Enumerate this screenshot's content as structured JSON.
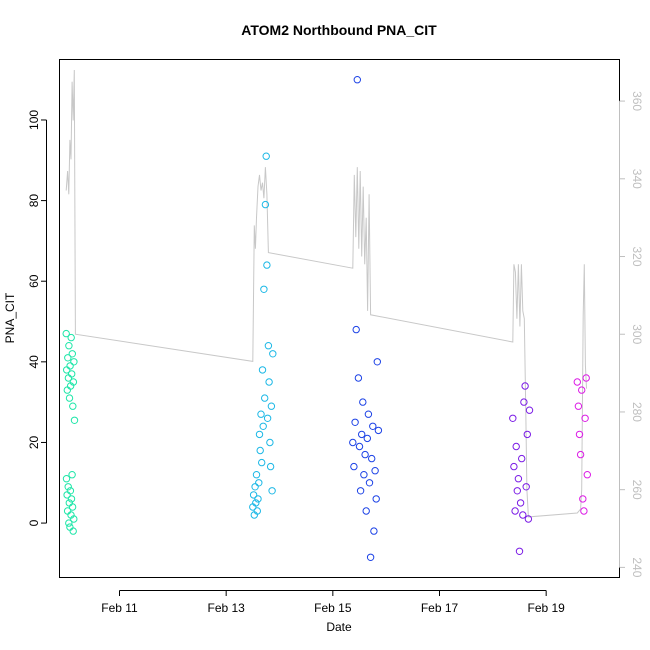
{
  "chart_data": {
    "type": "scatter",
    "title": "ATOM2 Northbound PNA_CIT",
    "xlabel": "Date",
    "ylabel": "PNA_CIT",
    "x_type": "date",
    "xlim": [
      "2017-02-09T21:00",
      "2017-02-20T09:00"
    ],
    "x_ticks": [
      {
        "label": "Feb 11",
        "value": "2017-02-11T00:00"
      },
      {
        "label": "Feb 13",
        "value": "2017-02-13T00:00"
      },
      {
        "label": "Feb 15",
        "value": "2017-02-15T00:00"
      },
      {
        "label": "Feb 17",
        "value": "2017-02-17T00:00"
      },
      {
        "label": "Feb 19",
        "value": "2017-02-19T00:00"
      }
    ],
    "ylim": [
      -13.5,
      115
    ],
    "y_ticks": [
      0,
      20,
      40,
      60,
      80,
      100
    ],
    "y2lim": [
      237.4,
      370.7
    ],
    "y2_ticks": [
      240,
      260,
      280,
      300,
      320,
      340,
      360
    ],
    "grid": false,
    "legend": "none",
    "point_style": "open circle, colored along a gradient by time",
    "line_series": {
      "color": "#c8c8c8",
      "axis": "right",
      "points": [
        [
          "2017-02-10T00:00",
          337
        ],
        [
          "2017-02-10T00:40",
          342
        ],
        [
          "2017-02-10T01:10",
          336
        ],
        [
          "2017-02-10T01:40",
          350
        ],
        [
          "2017-02-10T02:10",
          345
        ],
        [
          "2017-02-10T02:40",
          365
        ],
        [
          "2017-02-10T03:10",
          355
        ],
        [
          "2017-02-10T03:40",
          368
        ],
        [
          "2017-02-10T04:10",
          300
        ],
        [
          "2017-02-13T12:00",
          293
        ],
        [
          "2017-02-13T12:40",
          328
        ],
        [
          "2017-02-13T13:10",
          322
        ],
        [
          "2017-02-13T13:40",
          330
        ],
        [
          "2017-02-13T14:20",
          338
        ],
        [
          "2017-02-13T15:00",
          341
        ],
        [
          "2017-02-13T15:40",
          337
        ],
        [
          "2017-02-13T16:20",
          339
        ],
        [
          "2017-02-13T17:00",
          335
        ],
        [
          "2017-02-13T17:40",
          343
        ],
        [
          "2017-02-13T18:20",
          336
        ],
        [
          "2017-02-13T19:00",
          321
        ],
        [
          "2017-02-15T09:00",
          317
        ],
        [
          "2017-02-15T09:40",
          341
        ],
        [
          "2017-02-15T10:20",
          325
        ],
        [
          "2017-02-15T11:00",
          343
        ],
        [
          "2017-02-15T11:40",
          322
        ],
        [
          "2017-02-15T12:20",
          342
        ],
        [
          "2017-02-15T13:00",
          320
        ],
        [
          "2017-02-15T13:40",
          338
        ],
        [
          "2017-02-15T14:20",
          318
        ],
        [
          "2017-02-15T15:00",
          330
        ],
        [
          "2017-02-15T15:40",
          306
        ],
        [
          "2017-02-15T16:20",
          336
        ],
        [
          "2017-02-15T17:00",
          305
        ],
        [
          "2017-02-18T09:00",
          298
        ],
        [
          "2017-02-18T09:30",
          318
        ],
        [
          "2017-02-18T10:10",
          316
        ],
        [
          "2017-02-18T10:50",
          304
        ],
        [
          "2017-02-18T11:30",
          318
        ],
        [
          "2017-02-18T12:10",
          302
        ],
        [
          "2017-02-18T12:50",
          318
        ],
        [
          "2017-02-18T13:30",
          306
        ],
        [
          "2017-02-18T14:10",
          304
        ],
        [
          "2017-02-18T14:50",
          280
        ],
        [
          "2017-02-18T15:20",
          260
        ],
        [
          "2017-02-18T16:00",
          253
        ],
        [
          "2017-02-19T14:00",
          254
        ],
        [
          "2017-02-19T15:30",
          255
        ],
        [
          "2017-02-19T16:00",
          260
        ],
        [
          "2017-02-19T16:40",
          305
        ],
        [
          "2017-02-19T17:10",
          318
        ],
        [
          "2017-02-19T17:40",
          292
        ],
        [
          "2017-02-19T18:10",
          286
        ]
      ]
    },
    "series": [
      {
        "color": "#1de6a8",
        "points": [
          [
            "2017-02-10T00:00",
            47
          ],
          [
            "2017-02-10T00:15",
            38
          ],
          [
            "2017-02-10T00:30",
            33
          ],
          [
            "2017-02-10T00:45",
            41
          ],
          [
            "2017-02-10T01:00",
            36
          ],
          [
            "2017-02-10T01:15",
            44
          ],
          [
            "2017-02-10T01:30",
            31
          ],
          [
            "2017-02-10T01:45",
            39
          ],
          [
            "2017-02-10T02:00",
            34
          ],
          [
            "2017-02-10T02:15",
            46
          ],
          [
            "2017-02-10T02:30",
            37
          ],
          [
            "2017-02-10T02:45",
            42
          ],
          [
            "2017-02-10T03:00",
            29
          ],
          [
            "2017-02-10T03:15",
            35
          ],
          [
            "2017-02-10T03:30",
            40
          ],
          [
            "2017-02-10T03:45",
            25.5
          ],
          [
            "2017-02-10T00:10",
            11
          ],
          [
            "2017-02-10T00:25",
            7
          ],
          [
            "2017-02-10T00:40",
            3
          ],
          [
            "2017-02-10T00:55",
            9
          ],
          [
            "2017-02-10T01:10",
            0
          ],
          [
            "2017-02-10T01:25",
            5
          ],
          [
            "2017-02-10T01:40",
            -1
          ],
          [
            "2017-02-10T01:55",
            8
          ],
          [
            "2017-02-10T02:10",
            2
          ],
          [
            "2017-02-10T02:25",
            6
          ],
          [
            "2017-02-10T02:40",
            12
          ],
          [
            "2017-02-10T02:55",
            4
          ],
          [
            "2017-02-10T03:10",
            -2
          ],
          [
            "2017-02-10T03:25",
            1
          ]
        ]
      },
      {
        "color": "#1cb8e6",
        "points": [
          [
            "2017-02-13T12:00",
            4
          ],
          [
            "2017-02-13T12:20",
            7
          ],
          [
            "2017-02-13T12:40",
            2
          ],
          [
            "2017-02-13T13:00",
            9
          ],
          [
            "2017-02-13T13:20",
            5
          ],
          [
            "2017-02-13T13:40",
            12
          ],
          [
            "2017-02-13T14:00",
            3
          ],
          [
            "2017-02-13T14:20",
            6
          ],
          [
            "2017-02-13T14:40",
            10
          ],
          [
            "2017-02-13T15:00",
            22
          ],
          [
            "2017-02-13T15:20",
            18
          ],
          [
            "2017-02-13T15:40",
            27
          ],
          [
            "2017-02-13T16:00",
            15
          ],
          [
            "2017-02-13T16:20",
            38
          ],
          [
            "2017-02-13T16:40",
            24
          ],
          [
            "2017-02-13T17:00",
            58
          ],
          [
            "2017-02-13T17:20",
            31
          ],
          [
            "2017-02-13T17:40",
            79
          ],
          [
            "2017-02-13T18:00",
            91
          ],
          [
            "2017-02-13T18:20",
            64
          ],
          [
            "2017-02-13T18:40",
            26
          ],
          [
            "2017-02-13T19:00",
            44
          ],
          [
            "2017-02-13T19:20",
            35
          ],
          [
            "2017-02-13T19:40",
            20
          ],
          [
            "2017-02-13T20:00",
            14
          ],
          [
            "2017-02-13T20:20",
            29
          ],
          [
            "2017-02-13T20:40",
            8
          ],
          [
            "2017-02-13T21:00",
            42
          ]
        ]
      },
      {
        "color": "#1c42e6",
        "points": [
          [
            "2017-02-15T09:00",
            20
          ],
          [
            "2017-02-15T09:30",
            14
          ],
          [
            "2017-02-15T10:00",
            25
          ],
          [
            "2017-02-15T10:30",
            48
          ],
          [
            "2017-02-15T11:00",
            110
          ],
          [
            "2017-02-15T11:30",
            36
          ],
          [
            "2017-02-15T12:00",
            19
          ],
          [
            "2017-02-15T12:30",
            8
          ],
          [
            "2017-02-15T13:00",
            22
          ],
          [
            "2017-02-15T13:30",
            30
          ],
          [
            "2017-02-15T14:00",
            12
          ],
          [
            "2017-02-15T14:30",
            17
          ],
          [
            "2017-02-15T15:00",
            3
          ],
          [
            "2017-02-15T15:30",
            21
          ],
          [
            "2017-02-15T16:00",
            27
          ],
          [
            "2017-02-15T16:30",
            10
          ],
          [
            "2017-02-15T17:00",
            -8.5
          ],
          [
            "2017-02-15T17:30",
            16
          ],
          [
            "2017-02-15T18:00",
            24
          ],
          [
            "2017-02-15T18:30",
            -2
          ],
          [
            "2017-02-15T19:00",
            13
          ],
          [
            "2017-02-15T19:30",
            6
          ],
          [
            "2017-02-15T20:00",
            40
          ],
          [
            "2017-02-15T20:30",
            23
          ]
        ]
      },
      {
        "color": "#7b1ce6",
        "points": [
          [
            "2017-02-18T09:00",
            26
          ],
          [
            "2017-02-18T09:30",
            14
          ],
          [
            "2017-02-18T10:00",
            3
          ],
          [
            "2017-02-18T10:30",
            19
          ],
          [
            "2017-02-18T11:00",
            8
          ],
          [
            "2017-02-18T11:30",
            11
          ],
          [
            "2017-02-18T12:00",
            -7
          ],
          [
            "2017-02-18T12:30",
            5
          ],
          [
            "2017-02-18T13:00",
            16
          ],
          [
            "2017-02-18T13:30",
            2
          ],
          [
            "2017-02-18T14:00",
            30
          ],
          [
            "2017-02-18T14:30",
            34
          ],
          [
            "2017-02-18T15:00",
            9
          ],
          [
            "2017-02-18T15:30",
            22
          ],
          [
            "2017-02-18T16:00",
            1
          ],
          [
            "2017-02-18T16:30",
            28
          ]
        ]
      },
      {
        "color": "#dc1ce6",
        "points": [
          [
            "2017-02-19T14:00",
            35
          ],
          [
            "2017-02-19T14:30",
            29
          ],
          [
            "2017-02-19T15:00",
            22
          ],
          [
            "2017-02-19T15:30",
            17
          ],
          [
            "2017-02-19T16:00",
            33
          ],
          [
            "2017-02-19T16:30",
            6
          ],
          [
            "2017-02-19T17:00",
            3
          ],
          [
            "2017-02-19T17:30",
            26
          ],
          [
            "2017-02-19T18:00",
            36
          ],
          [
            "2017-02-19T18:30",
            12
          ]
        ]
      }
    ]
  }
}
